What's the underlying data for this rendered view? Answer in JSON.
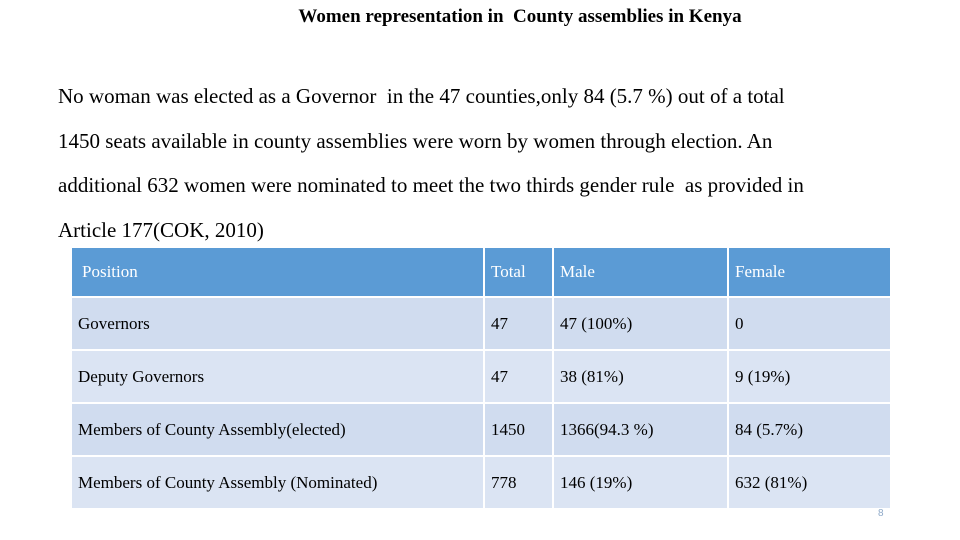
{
  "slide": {
    "title": "Women representation in  County assemblies in Kenya",
    "paragraph_lines": [
      "No woman was elected as a Governor  in the 47 counties,only 84 (5.7 %) out of a total",
      "1450 seats available in county assemblies were worn by women through election. An",
      "additional 632 women were nominated to meet the two thirds gender rule  as provided in",
      "Article 177(COK, 2010)"
    ],
    "page_number": "8"
  },
  "table": {
    "headers": [
      "Position",
      "Total",
      "Male",
      "Female"
    ],
    "rows": [
      [
        "Governors",
        "47",
        "47 (100%)",
        "0"
      ],
      [
        "Deputy Governors",
        "47",
        "38 (81%)",
        "9 (19%)"
      ],
      [
        "Members of County Assembly(elected)",
        "1450",
        "1366(94.3 %)",
        "84 (5.7%)"
      ],
      [
        "Members of County Assembly (Nominated)",
        "778",
        "146 (19%)",
        "632 (81%)"
      ]
    ]
  },
  "colors": {
    "header_background": "#5b9bd5",
    "row_background": "#d0dcef"
  }
}
